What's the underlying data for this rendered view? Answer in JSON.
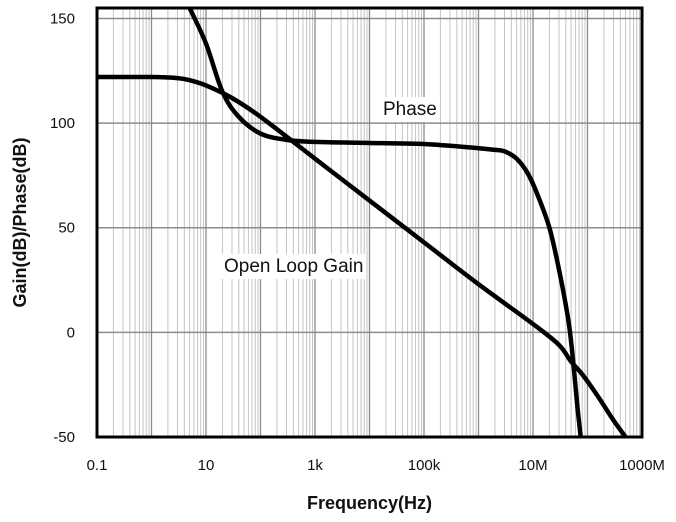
{
  "chart_data": {
    "type": "line",
    "title": "",
    "xlabel": "Frequency(Hz)",
    "ylabel": "Gain(dB)/Phase(dB)",
    "x_scale": "log",
    "xlim": [
      0.1,
      1000000000
    ],
    "ylim": [
      -50,
      155
    ],
    "grid": true,
    "x_tick_values": [
      0.1,
      10,
      1000,
      100000,
      10000000,
      1000000000
    ],
    "x_tick_labels": [
      "0.1",
      "10",
      "1k",
      "100k",
      "10M",
      "1000M"
    ],
    "y_tick_values": [
      150,
      100,
      50,
      0,
      -50
    ],
    "y_tick_labels": [
      "150",
      "100",
      "50",
      "0",
      "-50"
    ],
    "annotations": [
      {
        "text": "Phase",
        "series": "phase"
      },
      {
        "text": "Open Loop Gain",
        "series": "gain"
      }
    ],
    "series": [
      {
        "id": "gain",
        "color": "#000000",
        "points": [
          [
            0.1,
            122
          ],
          [
            1,
            122
          ],
          [
            3,
            121.5
          ],
          [
            5,
            120.5
          ],
          [
            10,
            118
          ],
          [
            30,
            112
          ],
          [
            100,
            103
          ],
          [
            1000,
            83
          ],
          [
            10000,
            63
          ],
          [
            100000,
            43
          ],
          [
            1000000,
            23
          ],
          [
            10000000,
            4
          ],
          [
            30000000,
            -6
          ],
          [
            50000000,
            -14
          ],
          [
            80000000,
            -20
          ],
          [
            150000000,
            -30
          ],
          [
            300000000,
            -42
          ],
          [
            500000000,
            -50
          ]
        ]
      },
      {
        "id": "phase",
        "color": "#000000",
        "points": [
          [
            5,
            155
          ],
          [
            10,
            138
          ],
          [
            20,
            115
          ],
          [
            40,
            103
          ],
          [
            100,
            95
          ],
          [
            300,
            92
          ],
          [
            1000,
            91
          ],
          [
            10000,
            90.5
          ],
          [
            100000,
            90
          ],
          [
            1000000,
            88
          ],
          [
            2000000,
            87.2
          ],
          [
            3000000,
            86.5
          ],
          [
            5000000,
            83
          ],
          [
            8000000,
            76
          ],
          [
            12000000,
            66
          ],
          [
            20000000,
            50
          ],
          [
            30000000,
            30
          ],
          [
            45000000,
            5
          ],
          [
            55000000,
            -15
          ],
          [
            65000000,
            -35
          ],
          [
            75000000,
            -50
          ]
        ]
      }
    ]
  }
}
